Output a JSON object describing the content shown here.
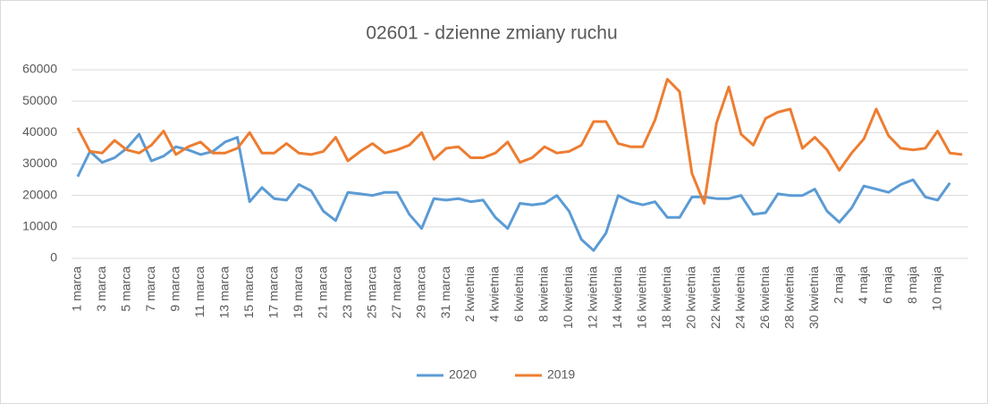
{
  "chart_data": {
    "type": "line",
    "title": "02601 - dzienne zmiany ruchu",
    "categories": [
      "1 marca",
      null,
      "3 marca",
      null,
      "5 marca",
      null,
      "7 marca",
      null,
      "9 marca",
      null,
      "11 marca",
      null,
      "13 marca",
      null,
      "15 marca",
      null,
      "17 marca",
      null,
      "19 marca",
      null,
      "21 marca",
      null,
      "23 marca",
      null,
      "25 marca",
      null,
      "27 marca",
      null,
      "29 marca",
      null,
      "31 marca",
      null,
      "2 kwietnia",
      null,
      "4 kwietnia",
      null,
      "6 kwietnia",
      null,
      "8 kwietnia",
      null,
      "10 kwietnia",
      null,
      "12 kwietnia",
      null,
      "14 kwietnia",
      null,
      "16 kwietnia",
      null,
      "18 kwietnia",
      null,
      "20 kwietnia",
      null,
      "22 kwietnia",
      null,
      "24 kwietnia",
      null,
      "26 kwietnia",
      null,
      "28 kwietnia",
      null,
      "30 kwietnia",
      null,
      "2 maja",
      null,
      "4 maja",
      null,
      "6 maja",
      null,
      "8 maja",
      null,
      "10 maja",
      null,
      null
    ],
    "series": [
      {
        "name": "2020",
        "color": "#5b9bd5",
        "values": [
          26000,
          34000,
          30500,
          32000,
          35000,
          39500,
          31000,
          32500,
          35500,
          34500,
          33000,
          34000,
          37000,
          38500,
          18000,
          22500,
          19000,
          18500,
          23500,
          21500,
          15000,
          12000,
          21000,
          20500,
          20000,
          21000,
          21000,
          14000,
          9500,
          19000,
          18500,
          19000,
          18000,
          18500,
          13000,
          9500,
          17500,
          17000,
          17500,
          20000,
          15000,
          6000,
          2500,
          8000,
          20000,
          18000,
          17000,
          18000,
          13000,
          13000,
          19500,
          19500,
          19000,
          19000,
          20000,
          14000,
          14500,
          20500,
          20000,
          20000,
          22000,
          15000,
          11500,
          16000,
          23000,
          22000,
          21000,
          23500,
          25000,
          19500,
          18500,
          24000,
          null
        ]
      },
      {
        "name": "2019",
        "color": "#ed7d31",
        "values": [
          41500,
          34000,
          33500,
          37500,
          34500,
          33500,
          36000,
          40500,
          33000,
          35500,
          37000,
          33500,
          33500,
          35000,
          40000,
          33500,
          33500,
          36500,
          33500,
          33000,
          34000,
          38500,
          31000,
          34000,
          36500,
          33500,
          34500,
          36000,
          40000,
          31500,
          35000,
          35500,
          32000,
          32000,
          33500,
          37000,
          30500,
          32000,
          35500,
          33500,
          34000,
          36000,
          43500,
          43500,
          36500,
          35500,
          35500,
          44000,
          57000,
          53000,
          27000,
          17500,
          43000,
          54500,
          39500,
          36000,
          44500,
          46500,
          47500,
          35000,
          38500,
          34500,
          28000,
          33500,
          38000,
          47500,
          39000,
          35000,
          34500,
          35000,
          40500,
          33500,
          33000
        ]
      }
    ],
    "ylim": [
      0,
      60000
    ],
    "yticks": [
      0,
      10000,
      20000,
      30000,
      40000,
      50000,
      60000
    ],
    "grid": true,
    "legend": "bottom"
  }
}
